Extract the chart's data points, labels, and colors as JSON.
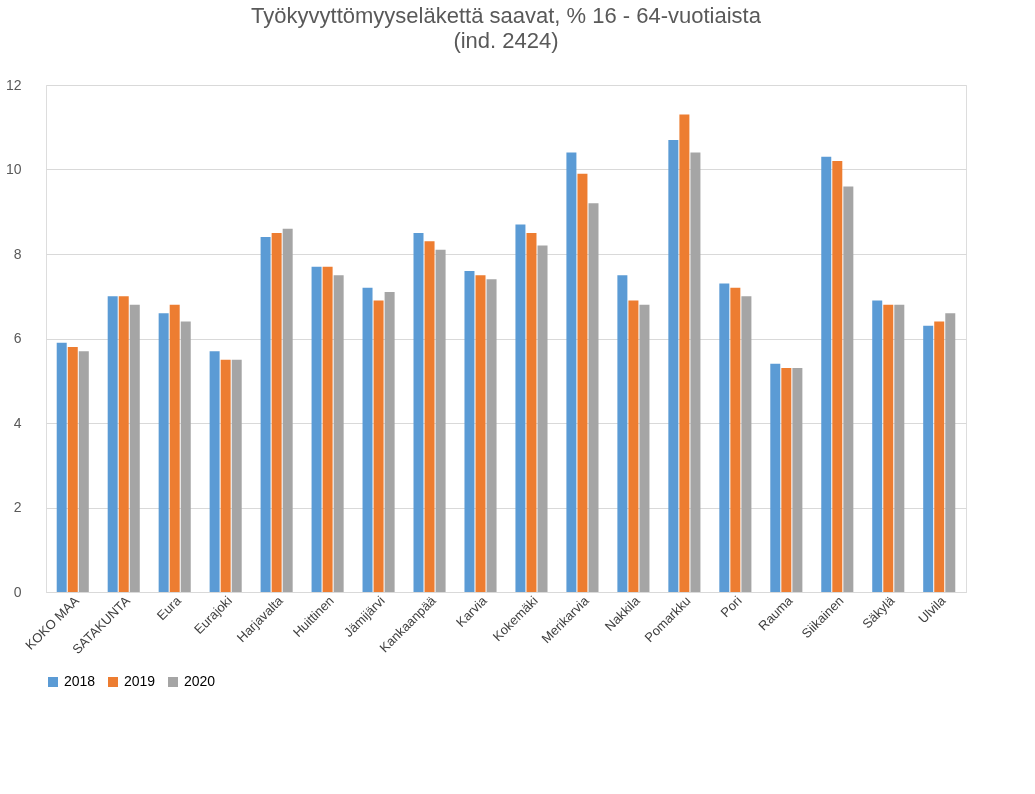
{
  "chart_data": {
    "type": "bar",
    "title": "Työkyvyttömyyseläkettä saavat, % 16 - 64-vuotiaista",
    "subtitle": "(ind. 2424)",
    "categories": [
      "KOKO MAA",
      "SATAKUNTA",
      "Eura",
      "Eurajoki",
      "Harjavalta",
      "Huittinen",
      "Jämijärvi",
      "Kankaanpää",
      "Karvia",
      "Kokemäki",
      "Merikarvia",
      "Nakkila",
      "Pomarkku",
      "Pori",
      "Rauma",
      "Siikainen",
      "Säkylä",
      "Ulvila"
    ],
    "series": [
      {
        "name": "2018",
        "color": "#5b9bd5",
        "values": [
          5.9,
          7.0,
          6.6,
          5.7,
          8.4,
          7.7,
          7.2,
          8.5,
          7.6,
          8.7,
          10.4,
          7.5,
          10.7,
          7.3,
          5.4,
          10.3,
          6.9,
          6.3
        ]
      },
      {
        "name": "2019",
        "color": "#ed7d31",
        "values": [
          5.8,
          7.0,
          6.8,
          5.5,
          8.5,
          7.7,
          6.9,
          8.3,
          7.5,
          8.5,
          9.9,
          6.9,
          11.3,
          7.2,
          5.3,
          10.2,
          6.8,
          6.4
        ]
      },
      {
        "name": "2020",
        "color": "#a5a5a5",
        "values": [
          5.7,
          6.8,
          6.4,
          5.5,
          8.6,
          7.5,
          7.1,
          8.1,
          7.4,
          8.2,
          9.2,
          6.8,
          10.4,
          7.0,
          5.3,
          9.6,
          6.8,
          6.6
        ]
      }
    ],
    "ylim": [
      0,
      12
    ],
    "yticks": [
      0,
      2,
      4,
      6,
      8,
      10,
      12
    ],
    "grid": "y",
    "legend": "bottom"
  }
}
